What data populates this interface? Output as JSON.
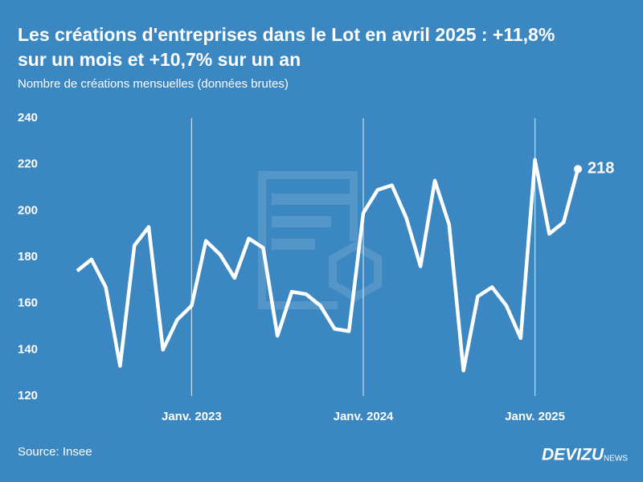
{
  "chart_data": {
    "type": "line",
    "title": "Les créations d'entreprises dans le Lot en avril 2025 : +11,8% sur un mois et +10,7% sur un an",
    "subtitle": "Nombre de créations mensuelles (données brutes)",
    "source": "Source: Insee",
    "brand": "DEVIZU",
    "brand_suffix": "NEWS",
    "categories": [
      null,
      null,
      null,
      null,
      null,
      null,
      null,
      null,
      "Janv. 2023",
      null,
      null,
      null,
      null,
      null,
      null,
      null,
      null,
      null,
      null,
      null,
      "Janv. 2024",
      null,
      null,
      null,
      null,
      null,
      null,
      null,
      null,
      null,
      null,
      null,
      "Janv. 2025",
      null,
      null,
      null
    ],
    "values": [
      174,
      179,
      167,
      133,
      185,
      193,
      140,
      153,
      159,
      187,
      181,
      171,
      188,
      184,
      146,
      165,
      164,
      159,
      149,
      148,
      199,
      209,
      211,
      197,
      176,
      213,
      194,
      131,
      163,
      167,
      159,
      145,
      222,
      190,
      195,
      218
    ],
    "color": "#ffffff",
    "ylim": [
      120,
      240
    ],
    "yticks": [
      120,
      140,
      160,
      180,
      200,
      220,
      240
    ],
    "x_grid": true,
    "last_value_label": true
  }
}
